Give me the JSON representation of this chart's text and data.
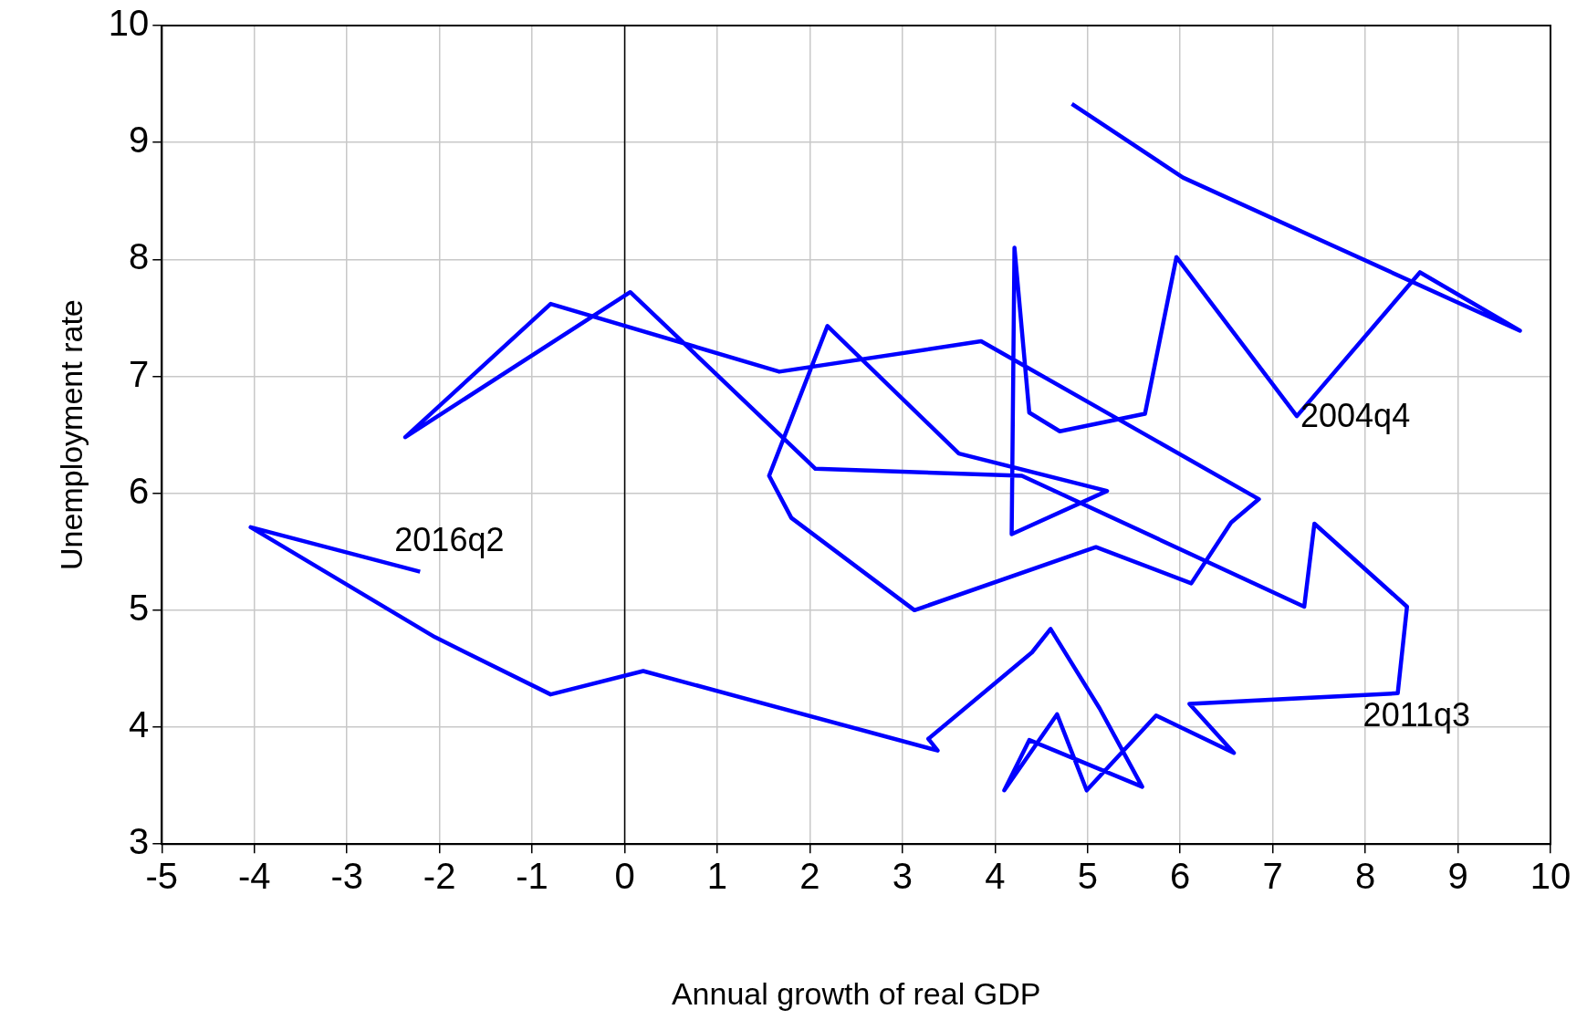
{
  "chart_data": {
    "type": "line",
    "xlabel": "Annual growth of real GDP",
    "ylabel": "Unemployment rate",
    "series": [
      {
        "color": "#0000ff",
        "x": [
          4.83,
          6.03,
          9.67,
          8.59,
          7.26,
          5.96,
          5.62,
          4.7,
          4.37,
          4.21,
          4.18,
          5.21,
          3.61,
          2.19,
          1.56,
          1.8,
          3.13,
          5.09,
          6.12,
          6.55,
          6.85,
          3.85,
          1.67,
          -0.8,
          -2.37,
          0.06,
          2.06,
          4.29,
          7.34,
          7.45,
          8.45,
          8.35,
          6.1,
          6.58,
          5.74,
          4.99,
          4.67,
          4.1,
          4.37,
          5.59,
          5.13,
          4.6,
          4.4,
          3.28,
          3.38,
          0.2,
          -0.8,
          -2.05,
          -4.04,
          -2.21
        ],
        "values": [
          9.33,
          8.7,
          7.39,
          7.89,
          6.66,
          8.02,
          6.68,
          6.53,
          6.69,
          8.1,
          5.65,
          6.02,
          6.34,
          7.43,
          6.15,
          5.79,
          5.0,
          5.54,
          5.23,
          5.75,
          5.95,
          7.3,
          7.04,
          7.62,
          6.48,
          7.72,
          6.21,
          6.15,
          5.03,
          5.74,
          5.03,
          4.29,
          4.2,
          3.78,
          4.1,
          3.46,
          4.11,
          3.46,
          3.89,
          3.49,
          4.16,
          4.84,
          4.64,
          3.9,
          3.8,
          4.48,
          4.28,
          4.77,
          5.71,
          5.33
        ]
      }
    ],
    "xlim": [
      -5,
      10
    ],
    "xticks": [
      -5,
      -4,
      -3,
      -2,
      -1,
      0,
      1,
      2,
      3,
      4,
      5,
      6,
      7,
      8,
      9,
      10
    ],
    "ylim": [
      3,
      10
    ],
    "yticks": [
      3,
      4,
      5,
      6,
      7,
      8,
      9,
      10
    ],
    "grid": true,
    "legend": false,
    "marker": "none",
    "line_style": "solid",
    "ref_lines": [
      {
        "axis": "x",
        "value": 0,
        "color": "#000000"
      }
    ],
    "annotations": [
      {
        "text": "2004q4",
        "x": 7.26,
        "y": 6.66
      },
      {
        "text": "2011q3",
        "x": 8.35,
        "y": 4.29
      },
      {
        "text": "2016q2",
        "x": -2.21,
        "y": 5.33
      }
    ]
  }
}
